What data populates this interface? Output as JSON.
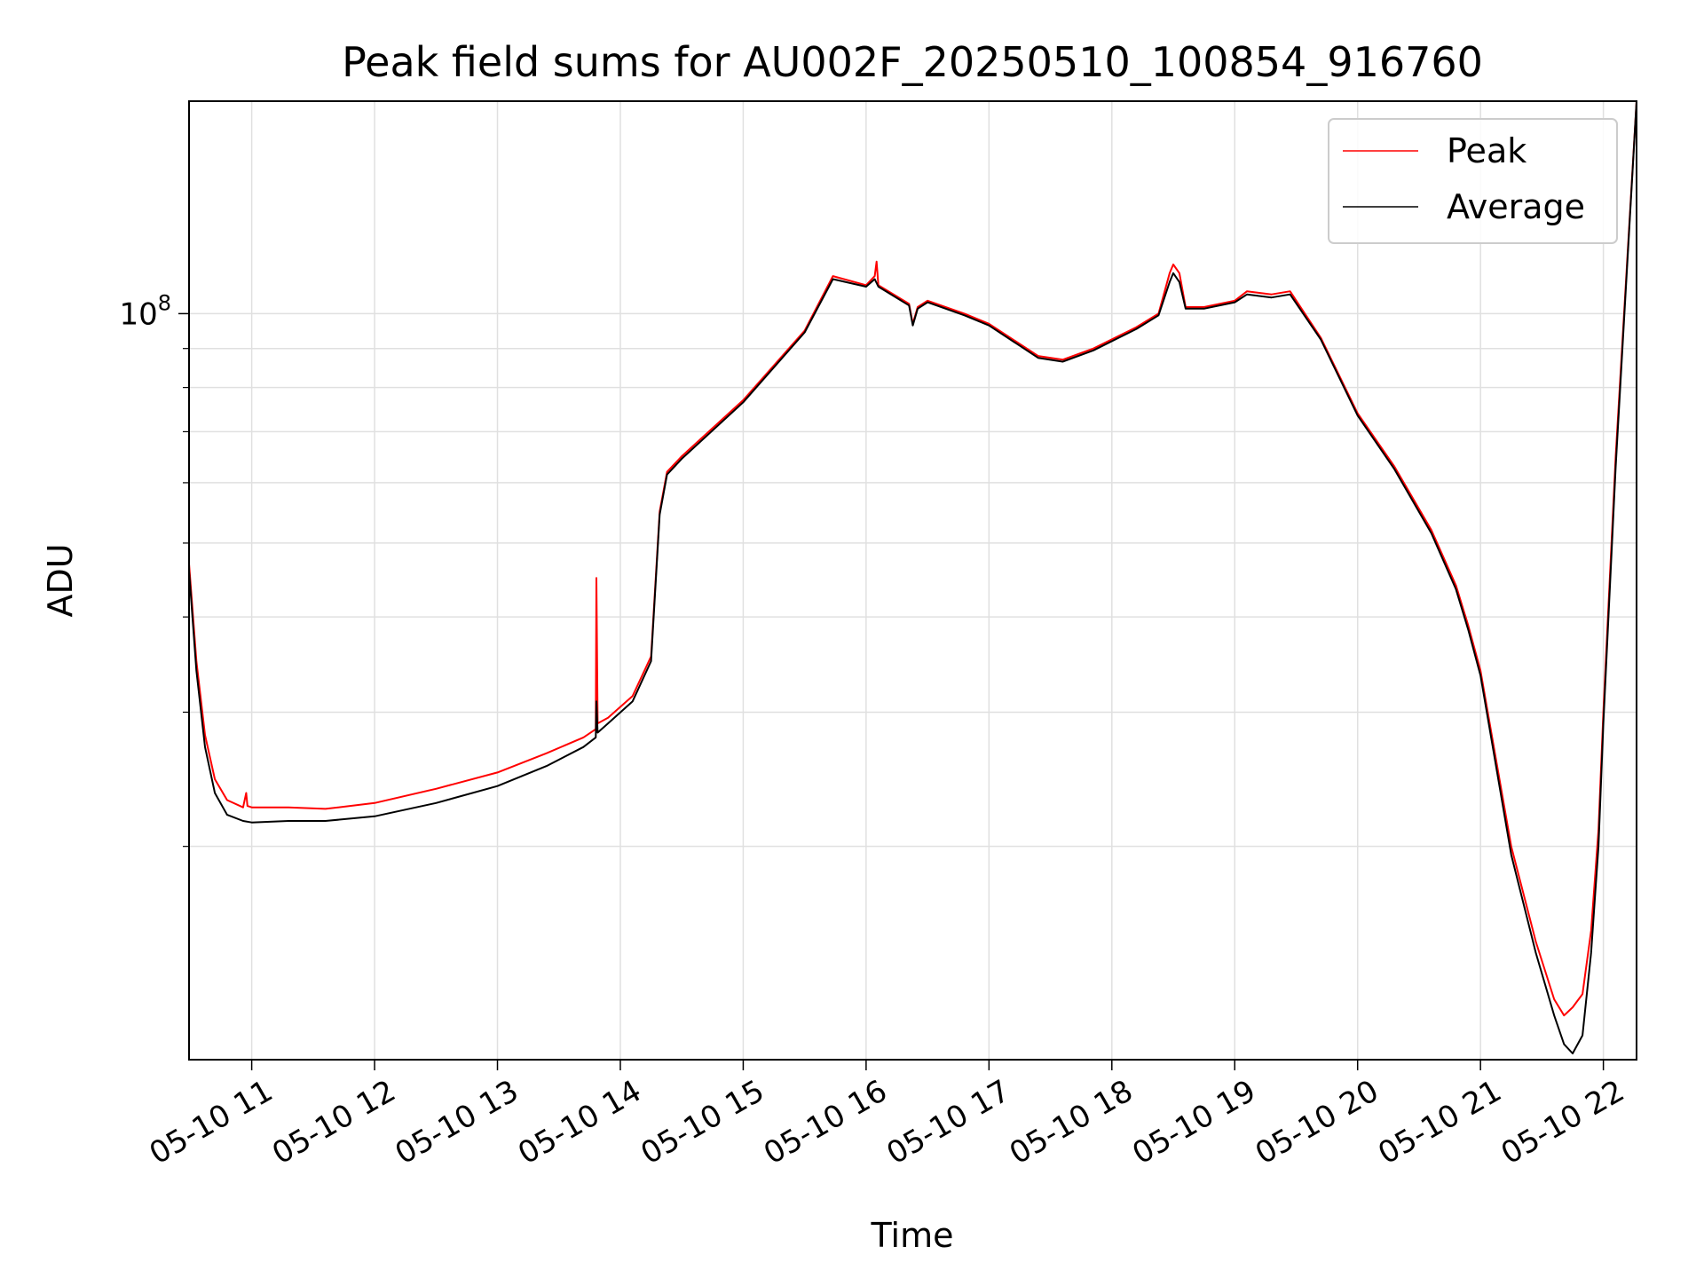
{
  "chart_data": {
    "type": "line",
    "title": "Peak field sums for AU002F_20250510_100854_916760",
    "xlabel": "Time",
    "ylabel": "ADU",
    "yscale": "log",
    "xlim": [
      10.49,
      22.27
    ],
    "ylim": [
      10500000,
      190000000
    ],
    "grid": true,
    "legend_position": "top-right",
    "x_ticks": [
      {
        "value": 11,
        "label": "05-10 11"
      },
      {
        "value": 12,
        "label": "05-10 12"
      },
      {
        "value": 13,
        "label": "05-10 13"
      },
      {
        "value": 14,
        "label": "05-10 14"
      },
      {
        "value": 15,
        "label": "05-10 15"
      },
      {
        "value": 16,
        "label": "05-10 16"
      },
      {
        "value": 17,
        "label": "05-10 17"
      },
      {
        "value": 18,
        "label": "05-10 18"
      },
      {
        "value": 19,
        "label": "05-10 19"
      },
      {
        "value": 20,
        "label": "05-10 20"
      },
      {
        "value": 21,
        "label": "05-10 21"
      },
      {
        "value": 22,
        "label": "05-10 22"
      }
    ],
    "y_major_ticks": [
      {
        "value": 100000000,
        "base": "10",
        "exp": "8"
      }
    ],
    "y_minor_ticks": [
      20000000,
      30000000,
      40000000,
      50000000,
      60000000,
      70000000,
      80000000,
      90000000
    ],
    "series": [
      {
        "name": "Peak",
        "color": "#ff0000",
        "x": [
          10.49,
          10.55,
          10.62,
          10.7,
          10.8,
          10.93,
          10.955,
          10.965,
          11.0,
          11.3,
          11.6,
          12.0,
          12.5,
          13.0,
          13.4,
          13.7,
          13.8,
          13.805,
          13.815,
          13.9,
          14.1,
          14.25,
          14.32,
          14.38,
          14.5,
          15.0,
          15.5,
          15.73,
          16.0,
          16.07,
          16.085,
          16.1,
          16.35,
          16.38,
          16.42,
          16.5,
          16.8,
          17.0,
          17.4,
          17.6,
          17.85,
          18.2,
          18.38,
          18.47,
          18.5,
          18.55,
          18.6,
          18.75,
          19.0,
          19.1,
          19.3,
          19.45,
          19.7,
          20.0,
          20.3,
          20.6,
          20.8,
          20.9,
          21.0,
          21.1,
          21.25,
          21.45,
          21.6,
          21.68,
          21.75,
          21.83,
          21.9,
          21.96,
          22.0,
          22.1,
          22.27
        ],
        "y": [
          47000000,
          35000000,
          28000000,
          24500000,
          23000000,
          22500000,
          23500000,
          22600000,
          22500000,
          22500000,
          22400000,
          22800000,
          23800000,
          25000000,
          26500000,
          27800000,
          28500000,
          45000000,
          29000000,
          29500000,
          31500000,
          35500000,
          55000000,
          62000000,
          65000000,
          77000000,
          95000000,
          112000000,
          109000000,
          112000000,
          117000000,
          109000000,
          103000000,
          97000000,
          102000000,
          104000000,
          100000000,
          97000000,
          88000000,
          87000000,
          90000000,
          96000000,
          100000000,
          113000000,
          116000000,
          113000000,
          102000000,
          102000000,
          104000000,
          107000000,
          106000000,
          107000000,
          93000000,
          74000000,
          63000000,
          52000000,
          44000000,
          39000000,
          34000000,
          27500000,
          20000000,
          15000000,
          12600000,
          12000000,
          12300000,
          12800000,
          15500000,
          21000000,
          30000000,
          65000000,
          190000000
        ]
      },
      {
        "name": "Average",
        "color": "#000000",
        "x": [
          10.49,
          10.55,
          10.62,
          10.7,
          10.8,
          10.93,
          11.0,
          11.3,
          11.6,
          12.0,
          12.5,
          13.0,
          13.4,
          13.7,
          13.8,
          13.805,
          13.815,
          13.9,
          14.1,
          14.25,
          14.32,
          14.38,
          14.5,
          15.0,
          15.5,
          15.73,
          16.0,
          16.07,
          16.1,
          16.35,
          16.38,
          16.42,
          16.5,
          16.8,
          17.0,
          17.4,
          17.6,
          17.85,
          18.2,
          18.38,
          18.47,
          18.5,
          18.55,
          18.6,
          18.75,
          19.0,
          19.1,
          19.3,
          19.45,
          19.7,
          20.0,
          20.3,
          20.6,
          20.8,
          20.9,
          21.0,
          21.1,
          21.25,
          21.45,
          21.6,
          21.68,
          21.75,
          21.83,
          21.9,
          21.96,
          22.0,
          22.1,
          22.27
        ],
        "y": [
          46000000,
          34000000,
          27000000,
          23500000,
          22000000,
          21600000,
          21500000,
          21600000,
          21600000,
          21900000,
          22800000,
          24000000,
          25500000,
          27000000,
          27800000,
          31000000,
          28200000,
          29000000,
          31000000,
          35000000,
          54500000,
          61500000,
          64500000,
          76500000,
          94500000,
          111000000,
          108500000,
          111000000,
          108500000,
          102500000,
          96500000,
          101500000,
          103500000,
          99500000,
          96500000,
          87500000,
          86500000,
          89500000,
          95500000,
          99500000,
          110000000,
          113000000,
          110000000,
          101500000,
          101500000,
          103500000,
          106000000,
          105000000,
          106000000,
          92500000,
          73500000,
          62500000,
          51500000,
          43500000,
          38500000,
          33500000,
          27000000,
          19500000,
          14500000,
          12000000,
          11000000,
          10700000,
          11300000,
          14500000,
          20000000,
          29000000,
          63000000,
          190000000
        ]
      }
    ]
  }
}
